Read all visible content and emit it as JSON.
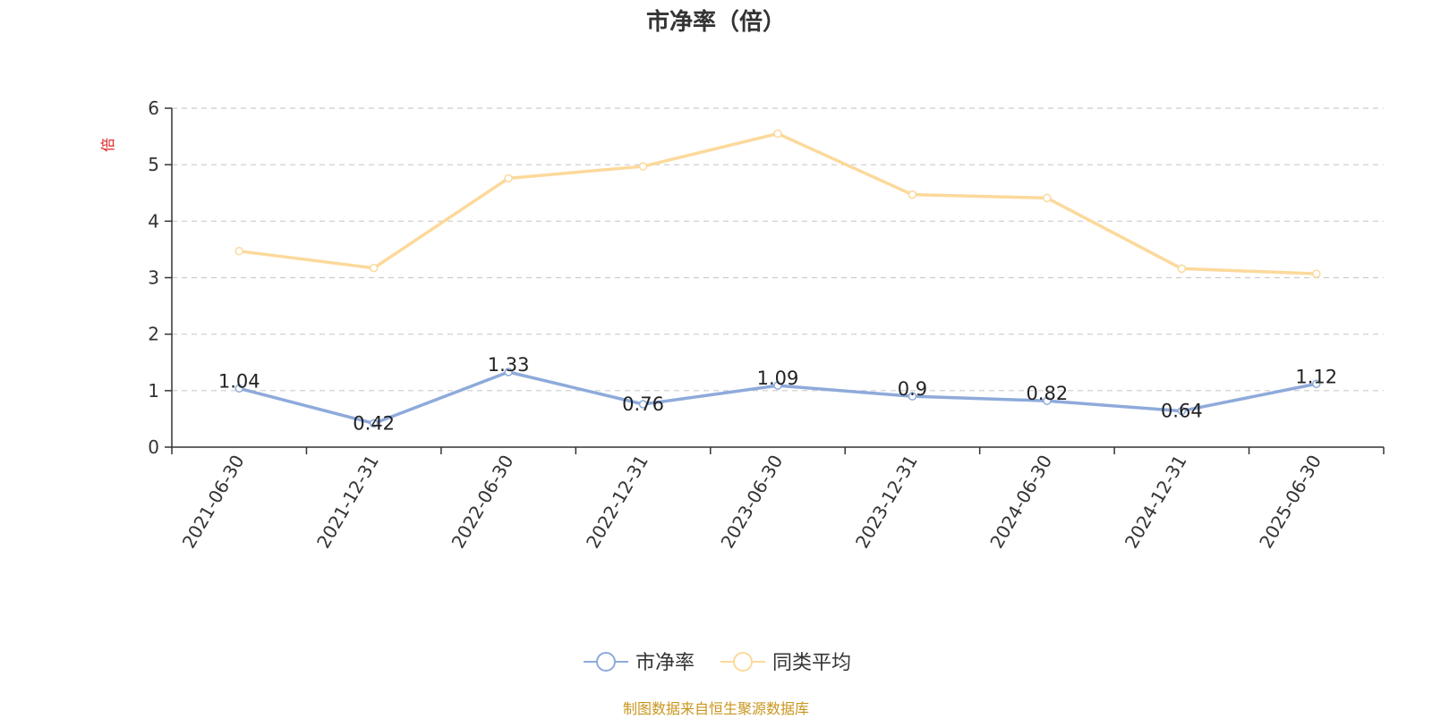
{
  "chart_data": {
    "type": "line",
    "title": "市净率（倍）",
    "ylabel": "倍",
    "xlabel": "",
    "ylim": [
      0,
      6
    ],
    "yticks": [
      0,
      1,
      2,
      3,
      4,
      5,
      6
    ],
    "grid": true,
    "legend_position": "bottom",
    "categories": [
      "2021-06-30",
      "2021-12-31",
      "2022-06-30",
      "2022-12-31",
      "2023-06-30",
      "2023-12-31",
      "2024-06-30",
      "2024-12-31",
      "2025-06-30"
    ],
    "series": [
      {
        "name": "市净率",
        "color": "#8eaadb",
        "values": [
          1.04,
          0.42,
          1.33,
          0.76,
          1.09,
          0.9,
          0.82,
          0.64,
          1.12
        ],
        "labels": [
          "1.04",
          "0.42",
          "1.33",
          "0.76",
          "1.09",
          "0.9",
          "0.82",
          "0.64",
          "1.12"
        ]
      },
      {
        "name": "同类平均",
        "color": "#fcd99b",
        "values": [
          3.47,
          3.17,
          4.76,
          4.97,
          5.55,
          4.47,
          4.41,
          3.16,
          3.07
        ]
      }
    ],
    "source": "制图数据来自恒生聚源数据库",
    "colors": {
      "axis": "#333333",
      "grid": "#cccccc",
      "text": "#333333",
      "ylabel": "#e02020",
      "source": "#c8961e"
    }
  }
}
